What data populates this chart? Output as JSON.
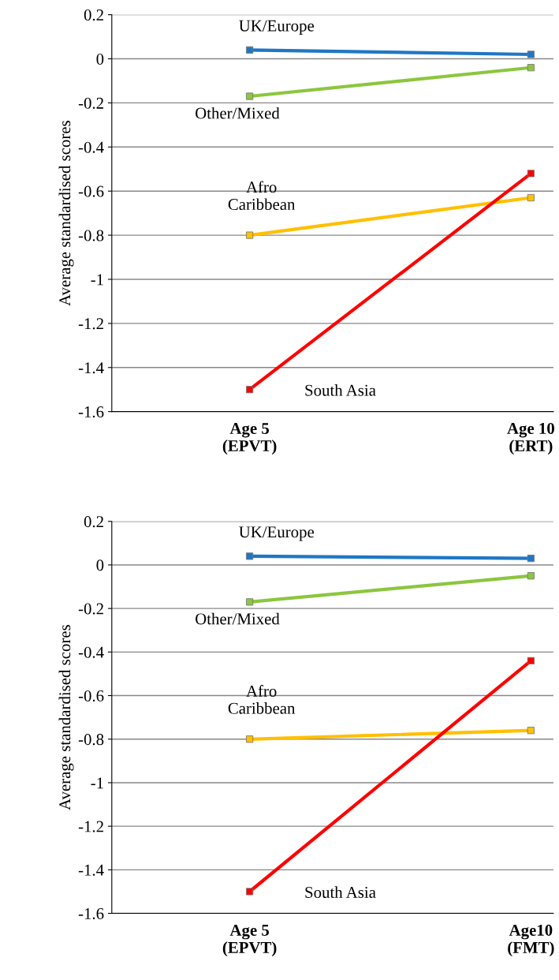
{
  "chart_data": [
    {
      "type": "line",
      "ylabel": "Average standardised scores",
      "categories": [
        "Age 5\n(EPVT)",
        "Age 10\n(ERT)"
      ],
      "ylim": [
        -1.6,
        0.2
      ],
      "yticks": [
        -1.6,
        -1.4,
        -1.2,
        -1,
        -0.8,
        -0.6,
        -0.4,
        -0.2,
        0,
        0.2
      ],
      "grid": "y",
      "legend": false,
      "marker": "square",
      "line_style": "solid",
      "series": [
        {
          "name": "UK/Europe",
          "color": "#1f77c4",
          "values": [
            0.04,
            0.02
          ]
        },
        {
          "name": "Other/Mixed",
          "color": "#8cc63f",
          "values": [
            -0.17,
            -0.04
          ]
        },
        {
          "name": "Afro\nCaribbean",
          "color": "#ffc000",
          "values": [
            -0.8,
            -0.63
          ]
        },
        {
          "name": "South Asia",
          "color": "#ff0000",
          "values": [
            -1.5,
            -0.52
          ]
        }
      ]
    },
    {
      "type": "line",
      "ylabel": "Average standardised scores",
      "categories": [
        "Age 5\n(EPVT)",
        "Age10\n(FMT)"
      ],
      "ylim": [
        -1.6,
        0.2
      ],
      "yticks": [
        -1.6,
        -1.4,
        -1.2,
        -1,
        -0.8,
        -0.6,
        -0.4,
        -0.2,
        0,
        0.2
      ],
      "grid": "y",
      "legend": false,
      "marker": "square",
      "line_style": "solid",
      "series": [
        {
          "name": "UK/Europe",
          "color": "#1f77c4",
          "values": [
            0.04,
            0.03
          ]
        },
        {
          "name": "Other/Mixed",
          "color": "#8cc63f",
          "values": [
            -0.17,
            -0.05
          ]
        },
        {
          "name": "Afro\nCaribbean",
          "color": "#ffc000",
          "values": [
            -0.8,
            -0.76
          ]
        },
        {
          "name": "South Asia",
          "color": "#ff0000",
          "values": [
            -1.5,
            -0.44
          ]
        }
      ]
    }
  ]
}
